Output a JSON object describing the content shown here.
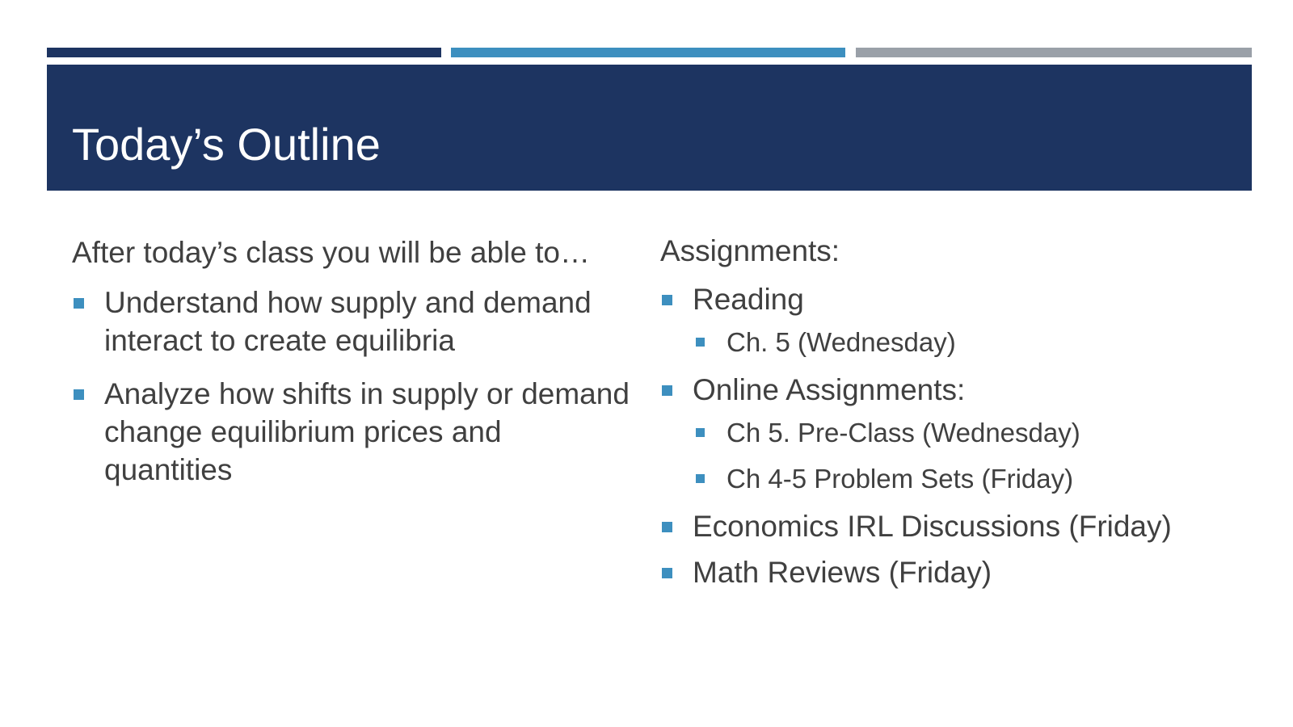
{
  "colors": {
    "navy": "#1d3461",
    "accent_blue": "#3d8fbf",
    "gray": "#9aa0a8",
    "bullet": "#3d8fbf",
    "text": "#404040",
    "title_text": "#ffffff"
  },
  "header": {
    "title": "Today’s Outline"
  },
  "objectives": {
    "intro": "After today’s class you will be able to…",
    "items": [
      "Understand how supply and demand interact to create equilibria",
      "Analyze how shifts in supply or demand change equilibrium prices and quantities"
    ]
  },
  "assignments": {
    "intro": "Assignments:",
    "items": [
      {
        "label": "Reading",
        "sub": [
          "Ch. 5 (Wednesday)"
        ]
      },
      {
        "label": "Online Assignments:",
        "sub": [
          "Ch 5. Pre-Class (Wednesday)",
          "Ch 4-5 Problem Sets (Friday)"
        ]
      },
      {
        "label": "Economics IRL Discussions (Friday)",
        "sub": []
      },
      {
        "label": "Math Reviews (Friday)",
        "sub": []
      }
    ]
  },
  "icons": {
    "bullet": "square-bullet-icon"
  }
}
